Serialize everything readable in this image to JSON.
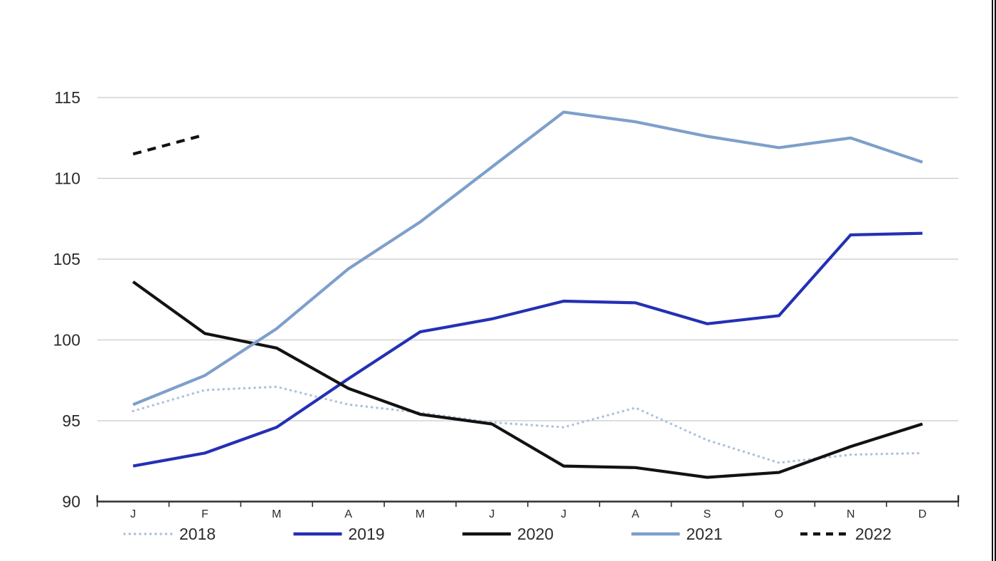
{
  "figure": {
    "background": "#FFFFFF",
    "text_color": "#2B2B2B",
    "gridline_color": "#C9C9C9",
    "axis_color": "#2F2F2F"
  },
  "window": {
    "right_border_color": "#141414"
  },
  "chart_data": {
    "type": "line",
    "title": "",
    "xlabel": "",
    "ylabel": "",
    "categories": [
      "J",
      "F",
      "M",
      "A",
      "M",
      "J",
      "J",
      "A",
      "S",
      "O",
      "N",
      "D"
    ],
    "y_ticks": [
      90,
      95,
      100,
      105,
      110,
      115
    ],
    "ylim": [
      90,
      115
    ],
    "grid": true,
    "legend_position": "bottom",
    "series": [
      {
        "name": "2018",
        "style": "dotted",
        "color": "#ADC1DD",
        "values": [
          95.6,
          96.9,
          97.1,
          96.0,
          95.5,
          94.9,
          94.6,
          95.8,
          93.8,
          92.4,
          92.9,
          93.0
        ]
      },
      {
        "name": "2019",
        "style": "solid",
        "color": "#2430B4",
        "values": [
          92.2,
          93.0,
          94.6,
          97.6,
          100.5,
          101.3,
          102.4,
          102.3,
          101.0,
          101.5,
          106.5,
          106.6
        ]
      },
      {
        "name": "2020",
        "style": "solid",
        "color": "#121212",
        "values": [
          103.6,
          100.4,
          99.5,
          97.0,
          95.4,
          94.8,
          92.2,
          92.1,
          91.5,
          91.8,
          93.4,
          94.8
        ]
      },
      {
        "name": "2021",
        "style": "solid",
        "color": "#7E9FCB",
        "values": [
          96.0,
          97.8,
          100.7,
          104.4,
          107.3,
          110.7,
          114.1,
          113.5,
          112.6,
          111.9,
          112.5,
          111.0
        ]
      },
      {
        "name": "2022",
        "style": "dashed",
        "color": "#121212",
        "values": [
          111.5,
          112.7,
          null,
          null,
          null,
          null,
          null,
          null,
          null,
          null,
          null,
          null
        ]
      }
    ]
  }
}
